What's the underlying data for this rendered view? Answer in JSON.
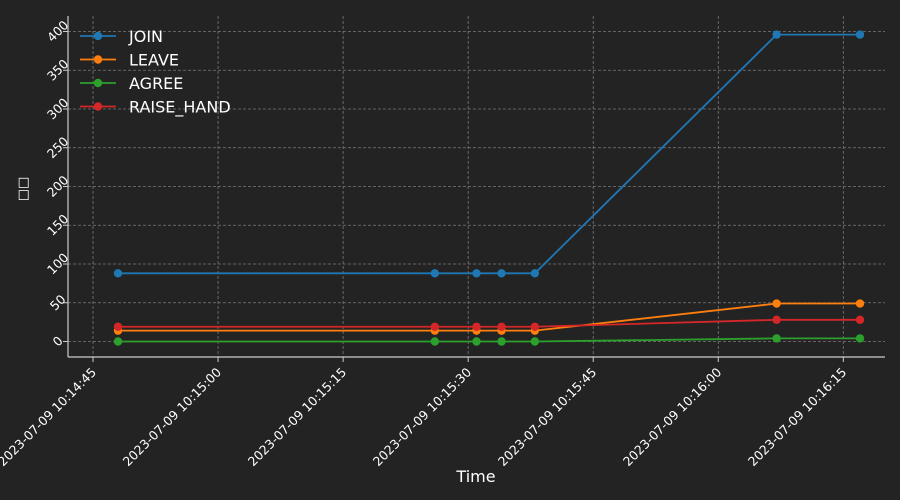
{
  "colors": {
    "background": "#232323",
    "axis": "#cccccc",
    "grid": "#7a7a7a",
    "text": "#ffffff"
  },
  "chart_data": {
    "type": "line",
    "title": "",
    "xlabel": "Time",
    "ylabel": "□□",
    "x_tick_labels": [
      "2023-07-09 10:14:45",
      "2023-07-09 10:15:00",
      "2023-07-09 10:15:15",
      "2023-07-09 10:15:30",
      "2023-07-09 10:15:45",
      "2023-07-09 10:16:00",
      "2023-07-09 10:16:15"
    ],
    "y_ticks": [
      0,
      50,
      100,
      150,
      200,
      250,
      300,
      350,
      400
    ],
    "ylim": [
      -20,
      420
    ],
    "xlim": [
      "2023-07-09 10:14:42",
      "2023-07-09 10:16:20"
    ],
    "grid": true,
    "legend_position": "top-left",
    "x": [
      "2023-07-09 10:14:48",
      "2023-07-09 10:15:26",
      "2023-07-09 10:15:31",
      "2023-07-09 10:15:34",
      "2023-07-09 10:15:38",
      "2023-07-09 10:16:07",
      "2023-07-09 10:16:17"
    ],
    "series": [
      {
        "name": "JOIN",
        "color": "#1f77b4",
        "values": [
          88,
          88,
          88,
          88,
          88,
          396,
          396
        ]
      },
      {
        "name": "LEAVE",
        "color": "#ff7f0e",
        "values": [
          14,
          14,
          14,
          14,
          14,
          49,
          49
        ]
      },
      {
        "name": "AGREE",
        "color": "#2ca02c",
        "values": [
          0,
          0,
          0,
          0,
          0,
          4,
          4
        ]
      },
      {
        "name": "RAISE_HAND",
        "color": "#d62728",
        "values": [
          19,
          19,
          19,
          19,
          19,
          28,
          28
        ]
      }
    ]
  }
}
